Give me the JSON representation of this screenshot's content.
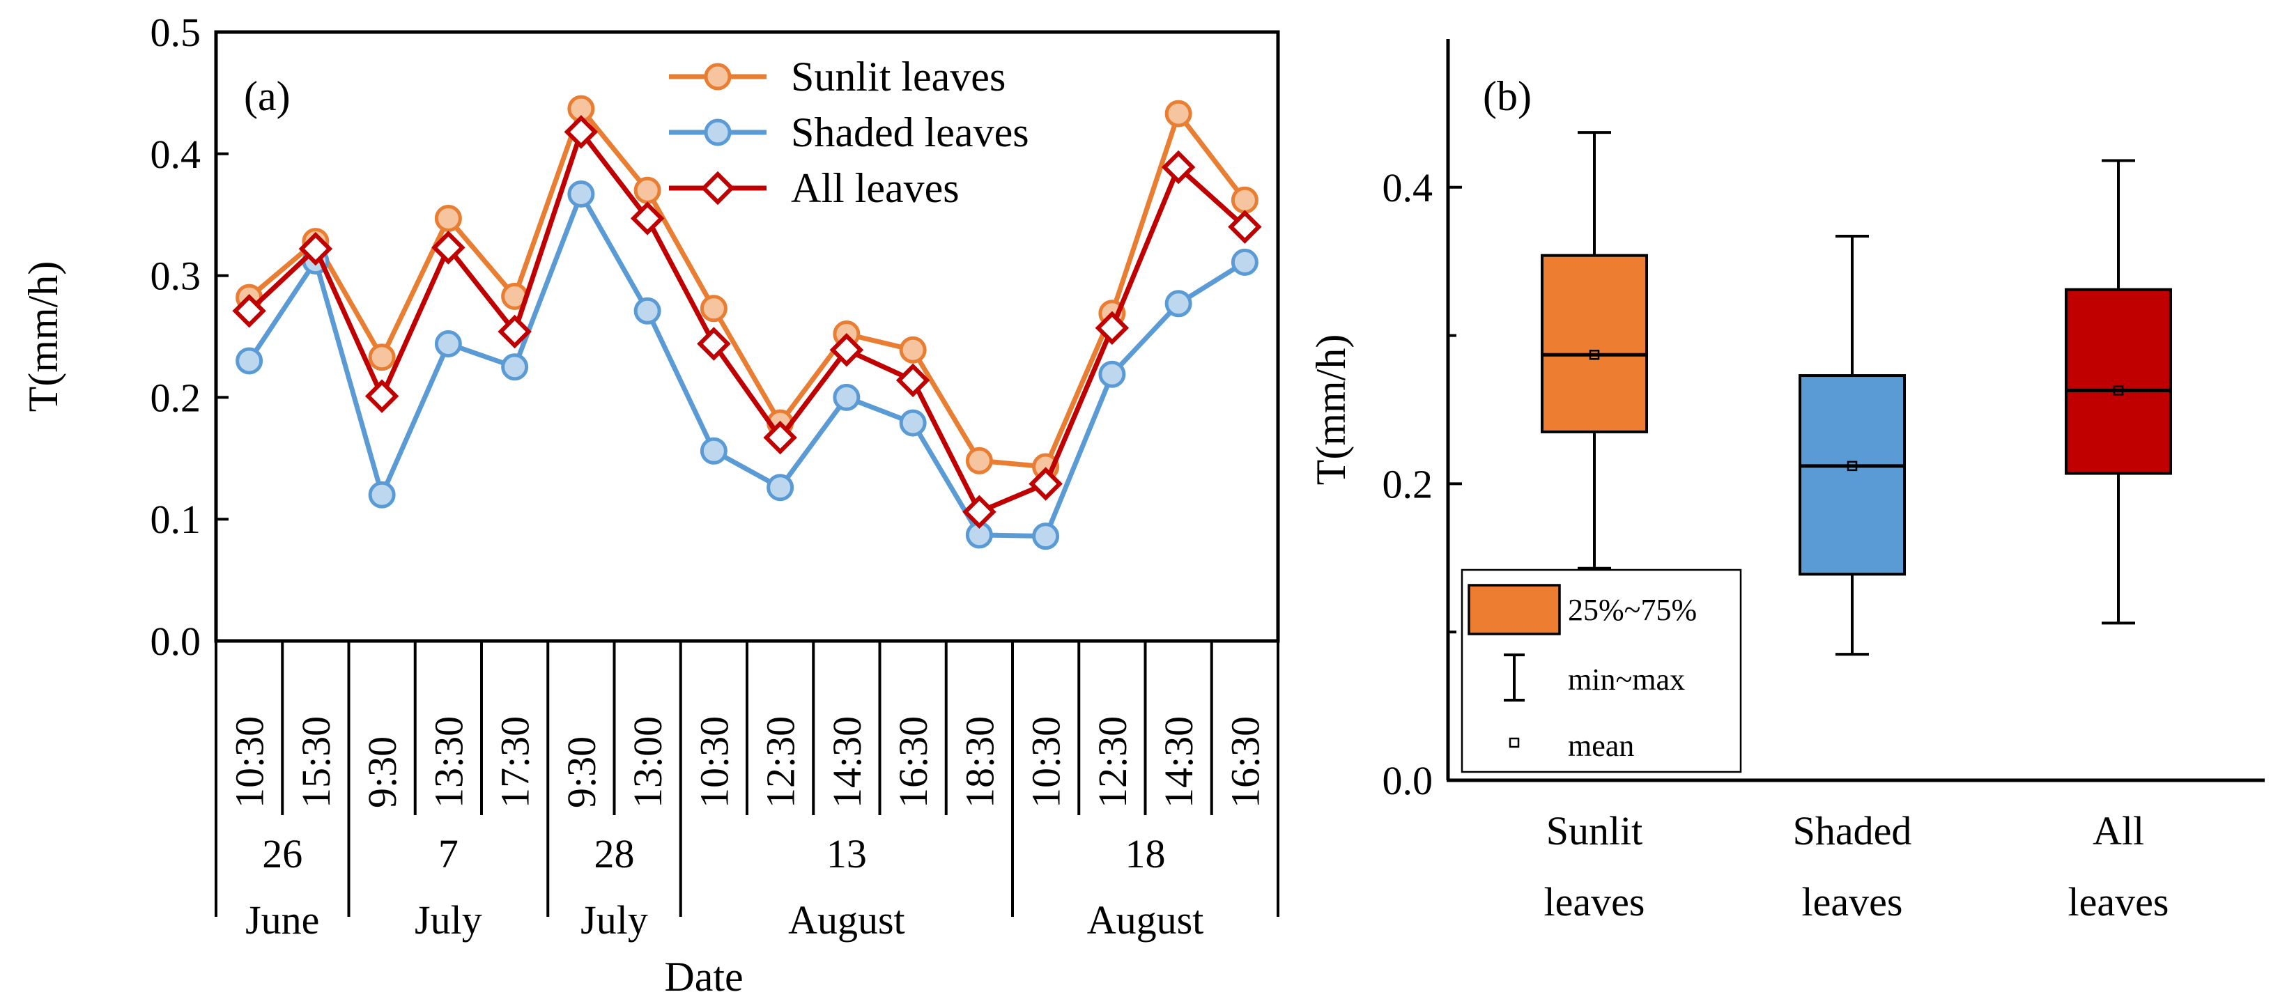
{
  "chart_data": [
    {
      "type": "line",
      "panel_label": "(a)",
      "ylabel": "T(mm/h)",
      "xlabel": "Date",
      "ylim": [
        0,
        0.5
      ],
      "yticks": [
        "0.0",
        "0.1",
        "0.2",
        "0.3",
        "0.4",
        "0.5"
      ],
      "times": [
        "10:30",
        "15:30",
        "9:30",
        "13:30",
        "17:30",
        "9:30",
        "13:00",
        "10:30",
        "12:30",
        "14:30",
        "16:30",
        "18:30",
        "10:30",
        "12:30",
        "14:30",
        "16:30"
      ],
      "date_groups": [
        {
          "day": "26",
          "month": "June",
          "count": 2
        },
        {
          "day": "7",
          "month": "July",
          "count": 3
        },
        {
          "day": "28",
          "month": "July",
          "count": 2
        },
        {
          "day": "13",
          "month": "August",
          "count": 5
        },
        {
          "day": "18",
          "month": "August",
          "count": 4
        }
      ],
      "series": [
        {
          "name": "Sunlit leaves",
          "color": "#E97D32",
          "fill": "#F6C49E",
          "marker": "circle",
          "values": [
            0.282,
            0.328,
            0.233,
            0.347,
            0.283,
            0.437,
            0.37,
            0.273,
            0.179,
            0.252,
            0.239,
            0.148,
            0.143,
            0.269,
            0.433,
            0.362
          ]
        },
        {
          "name": "Shaded leaves",
          "color": "#5B9BD5",
          "fill": "#BDD7EE",
          "marker": "circle",
          "values": [
            0.23,
            0.312,
            0.12,
            0.244,
            0.225,
            0.367,
            0.271,
            0.156,
            0.126,
            0.2,
            0.179,
            0.087,
            0.086,
            0.219,
            0.277,
            0.311
          ]
        },
        {
          "name": "All leaves",
          "color": "#C00000",
          "fill": "#FFFFFF",
          "marker": "diamond",
          "values": [
            0.271,
            0.322,
            0.201,
            0.323,
            0.254,
            0.418,
            0.347,
            0.244,
            0.167,
            0.239,
            0.214,
            0.106,
            0.129,
            0.257,
            0.389,
            0.34
          ]
        }
      ]
    },
    {
      "type": "box",
      "panel_label": "(b)",
      "ylabel": "T(mm/h)",
      "ylim": [
        0,
        0.5
      ],
      "yticks": [
        "0.0",
        "0.2",
        "0.4"
      ],
      "boxes": [
        {
          "name": "Sunlit leaves",
          "line1": "Sunlit",
          "line2": "leaves",
          "color": "#ED7D31",
          "min": 0.143,
          "q1": 0.235,
          "median": 0.287,
          "mean": 0.287,
          "q3": 0.354,
          "max": 0.437
        },
        {
          "name": "Shaded leaves",
          "line1": "Shaded",
          "line2": "leaves",
          "color": "#5B9BD5",
          "min": 0.085,
          "q1": 0.139,
          "median": 0.212,
          "mean": 0.212,
          "q3": 0.273,
          "max": 0.367
        },
        {
          "name": "All leaves",
          "line1": "All",
          "line2": "leaves",
          "color": "#C00000",
          "min": 0.106,
          "q1": 0.207,
          "median": 0.263,
          "mean": 0.263,
          "q3": 0.331,
          "max": 0.418
        }
      ],
      "legend": {
        "box": "25%~75%",
        "whisker": "min~max",
        "mean": "mean"
      }
    }
  ]
}
